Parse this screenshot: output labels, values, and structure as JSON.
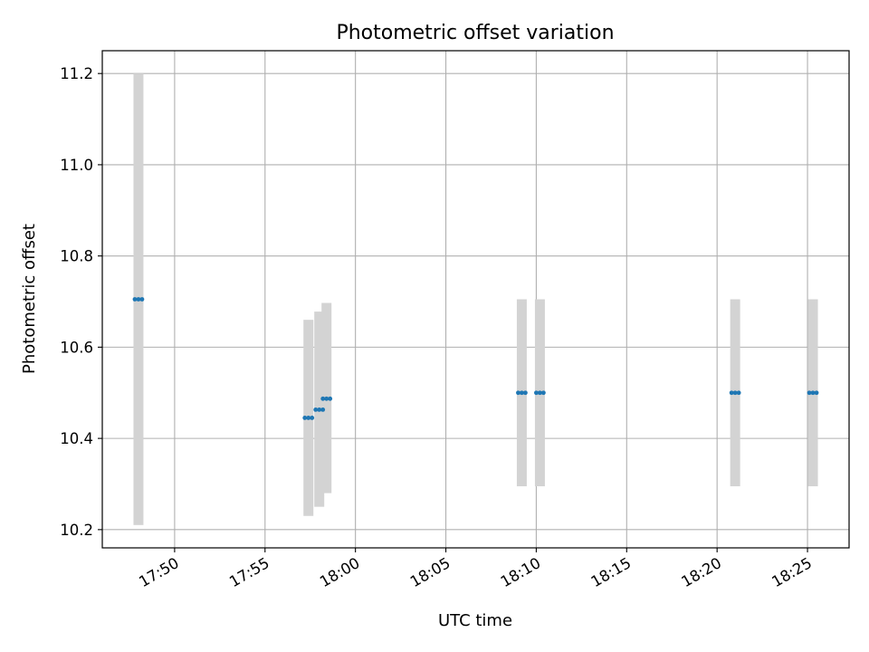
{
  "chart_data": {
    "type": "scatter",
    "title": "Photometric offset variation",
    "xlabel": "UTC time",
    "ylabel": "Photometric offset",
    "xlim": [
      "17:46",
      "18:27.3"
    ],
    "ylim": [
      10.16,
      11.25
    ],
    "x_ticks": [
      "17:50",
      "17:55",
      "18:00",
      "18:05",
      "18:10",
      "18:15",
      "18:20",
      "18:25"
    ],
    "y_ticks": [
      10.2,
      10.4,
      10.6,
      10.8,
      11.0,
      11.2
    ],
    "y_tick_labels": [
      "10.2",
      "10.4",
      "10.6",
      "10.8",
      "11.0",
      "11.2"
    ],
    "grid": true,
    "points": [
      {
        "start": "17:47.8",
        "end": "17:48.2",
        "y": 10.705,
        "error_low": 10.21,
        "error_high": 11.2
      },
      {
        "start": "17:57.2",
        "end": "17:57.6",
        "y": 10.445,
        "error_low": 10.23,
        "error_high": 10.66
      },
      {
        "start": "17:57.8",
        "end": "17:58.2",
        "y": 10.463,
        "error_low": 10.25,
        "error_high": 10.678
      },
      {
        "start": "17:58.2",
        "end": "17:58.6",
        "y": 10.487,
        "error_low": 10.28,
        "error_high": 10.697
      },
      {
        "start": "18:09.0",
        "end": "18:09.4",
        "y": 10.5,
        "error_low": 10.295,
        "error_high": 10.705
      },
      {
        "start": "18:10.0",
        "end": "18:10.4",
        "y": 10.5,
        "error_low": 10.295,
        "error_high": 10.705
      },
      {
        "start": "18:20.8",
        "end": "18:21.2",
        "y": 10.5,
        "error_low": 10.295,
        "error_high": 10.705
      },
      {
        "start": "18:25.1",
        "end": "18:25.5",
        "y": 10.5,
        "error_low": 10.295,
        "error_high": 10.705
      }
    ]
  },
  "colors": {
    "marker": "#1f77b4",
    "error_band": "#d3d3d3",
    "grid": "#b0b0b0",
    "axes": "#000000"
  }
}
